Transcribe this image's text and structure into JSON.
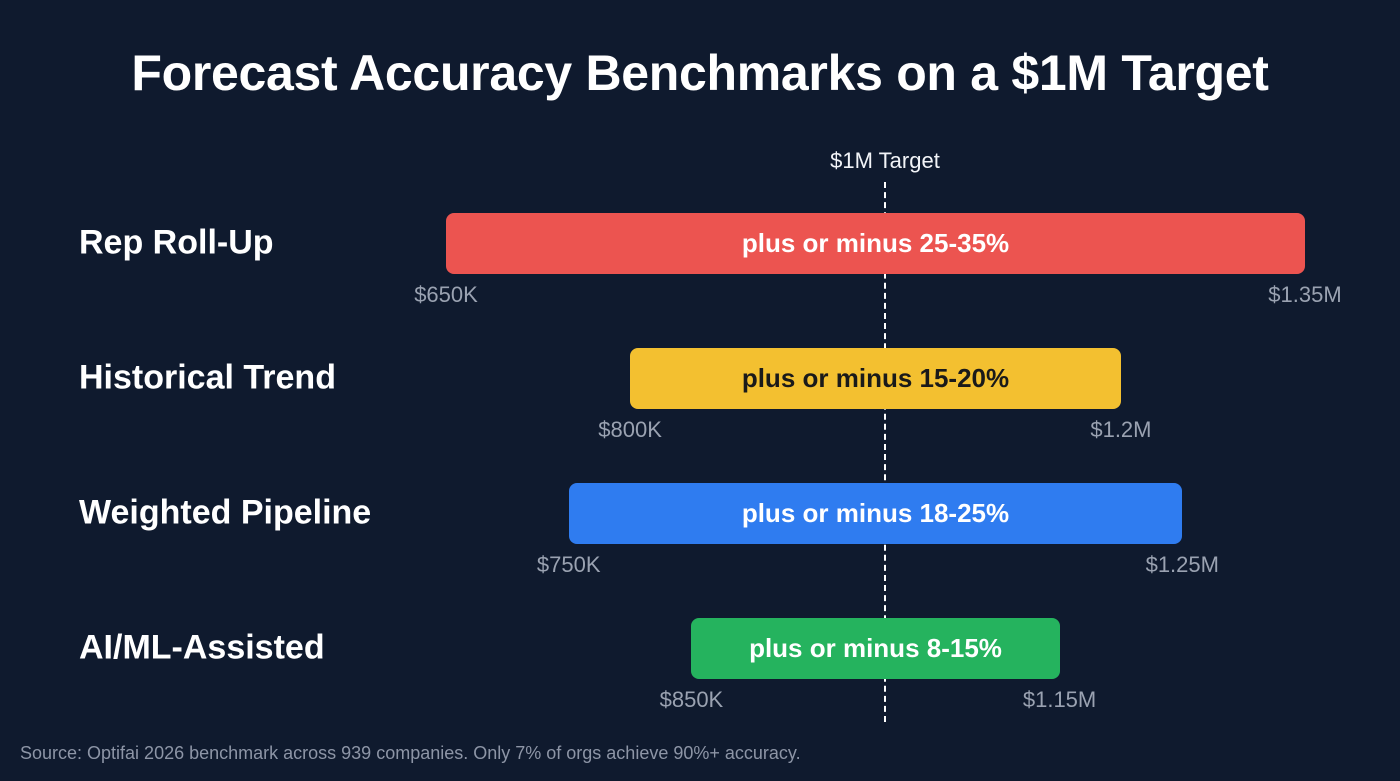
{
  "title": "Forecast Accuracy Benchmarks on a $1M Target",
  "target": {
    "label": "$1M Target",
    "value": 1000000
  },
  "source_note": "Source: Optifai 2026 benchmark across 939 companies. Only 7% of orgs achieve 90%+ accuracy.",
  "rows": [
    {
      "label": "Rep Roll-Up",
      "bar_text": "plus or minus 25-35%",
      "low_label": "$650K",
      "high_label": "$1.35M",
      "low": 650000,
      "high": 1350000,
      "color": "#ec5450",
      "text_color": "#ffffff"
    },
    {
      "label": "Historical Trend",
      "bar_text": "plus or minus 15-20%",
      "low_label": "$800K",
      "high_label": "$1.2M",
      "low": 800000,
      "high": 1200000,
      "color": "#f3c030",
      "text_color": "#1a1a1a"
    },
    {
      "label": "Weighted Pipeline",
      "bar_text": "plus or minus 18-25%",
      "low_label": "$750K",
      "high_label": "$1.25M",
      "low": 750000,
      "high": 1250000,
      "color": "#2f7cf0",
      "text_color": "#ffffff"
    },
    {
      "label": "AI/ML-Assisted",
      "bar_text": "plus or minus 8-15%",
      "low_label": "$850K",
      "high_label": "$1.15M",
      "low": 850000,
      "high": 1150000,
      "color": "#25b35e",
      "text_color": "#ffffff"
    }
  ],
  "chart_data": {
    "type": "bar",
    "orientation": "horizontal-range",
    "title": "Forecast Accuracy Benchmarks on a $1M Target",
    "categories": [
      "Rep Roll-Up",
      "Historical Trend",
      "Weighted Pipeline",
      "AI/ML-Assisted"
    ],
    "series": [
      {
        "name": "Low estimate",
        "values": [
          650000,
          800000,
          750000,
          850000
        ]
      },
      {
        "name": "High estimate",
        "values": [
          1350000,
          1200000,
          1250000,
          1150000
        ]
      }
    ],
    "bar_labels": [
      "plus or minus 25-35%",
      "plus or minus 15-20%",
      "plus or minus 18-25%",
      "plus or minus 8-15%"
    ],
    "reference_line": {
      "value": 1000000,
      "label": "$1M Target",
      "style": "dashed"
    },
    "colors": [
      "#ec5450",
      "#f3c030",
      "#2f7cf0",
      "#25b35e"
    ],
    "xlabel": "",
    "ylabel": "",
    "xlim": [
      650000,
      1350000
    ],
    "grid": false,
    "legend": "none",
    "annotation": "Source: Optifai 2026 benchmark across 939 companies. Only 7% of orgs achieve 90%+ accuracy."
  }
}
